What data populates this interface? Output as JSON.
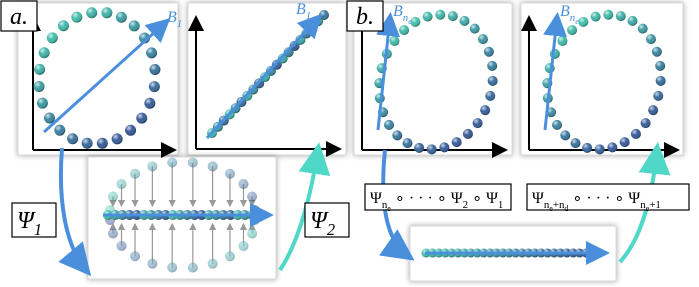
{
  "panel_a": {
    "tag": "a.",
    "basis": [
      {
        "text": "B",
        "level": 0
      },
      {
        "text": "1",
        "level": 1
      }
    ],
    "map_1": [
      {
        "text": "Ψ",
        "level": 0
      },
      {
        "text": "1",
        "level": 1
      }
    ],
    "map_2": [
      {
        "text": "Ψ",
        "level": 0
      },
      {
        "text": "2",
        "level": 1
      }
    ]
  },
  "panel_b": {
    "tag": "b.",
    "basis": [
      {
        "text": "B",
        "level": 0
      },
      {
        "text": "n",
        "level": 1
      },
      {
        "text": "e",
        "level": 2
      }
    ],
    "encoder": [
      {
        "text": "Ψ",
        "level": 0
      },
      {
        "text": "n",
        "level": 1
      },
      {
        "text": "e",
        "level": 2
      },
      {
        "text": " ∘ · · · ∘ Ψ",
        "level": 0
      },
      {
        "text": "2",
        "level": 1
      },
      {
        "text": " ∘ Ψ",
        "level": 0
      },
      {
        "text": "1",
        "level": 1
      }
    ],
    "decoder": [
      {
        "text": "Ψ",
        "level": 0
      },
      {
        "text": "n",
        "level": 1
      },
      {
        "text": "e",
        "level": 2
      },
      {
        "text": "+n",
        "level": 1
      },
      {
        "text": "d",
        "level": 2
      },
      {
        "text": " ∘ · · · ∘ Ψ",
        "level": 0
      },
      {
        "text": "n",
        "level": 1
      },
      {
        "text": "e",
        "level": 2
      },
      {
        "text": "+1",
        "level": 1
      }
    ]
  }
}
